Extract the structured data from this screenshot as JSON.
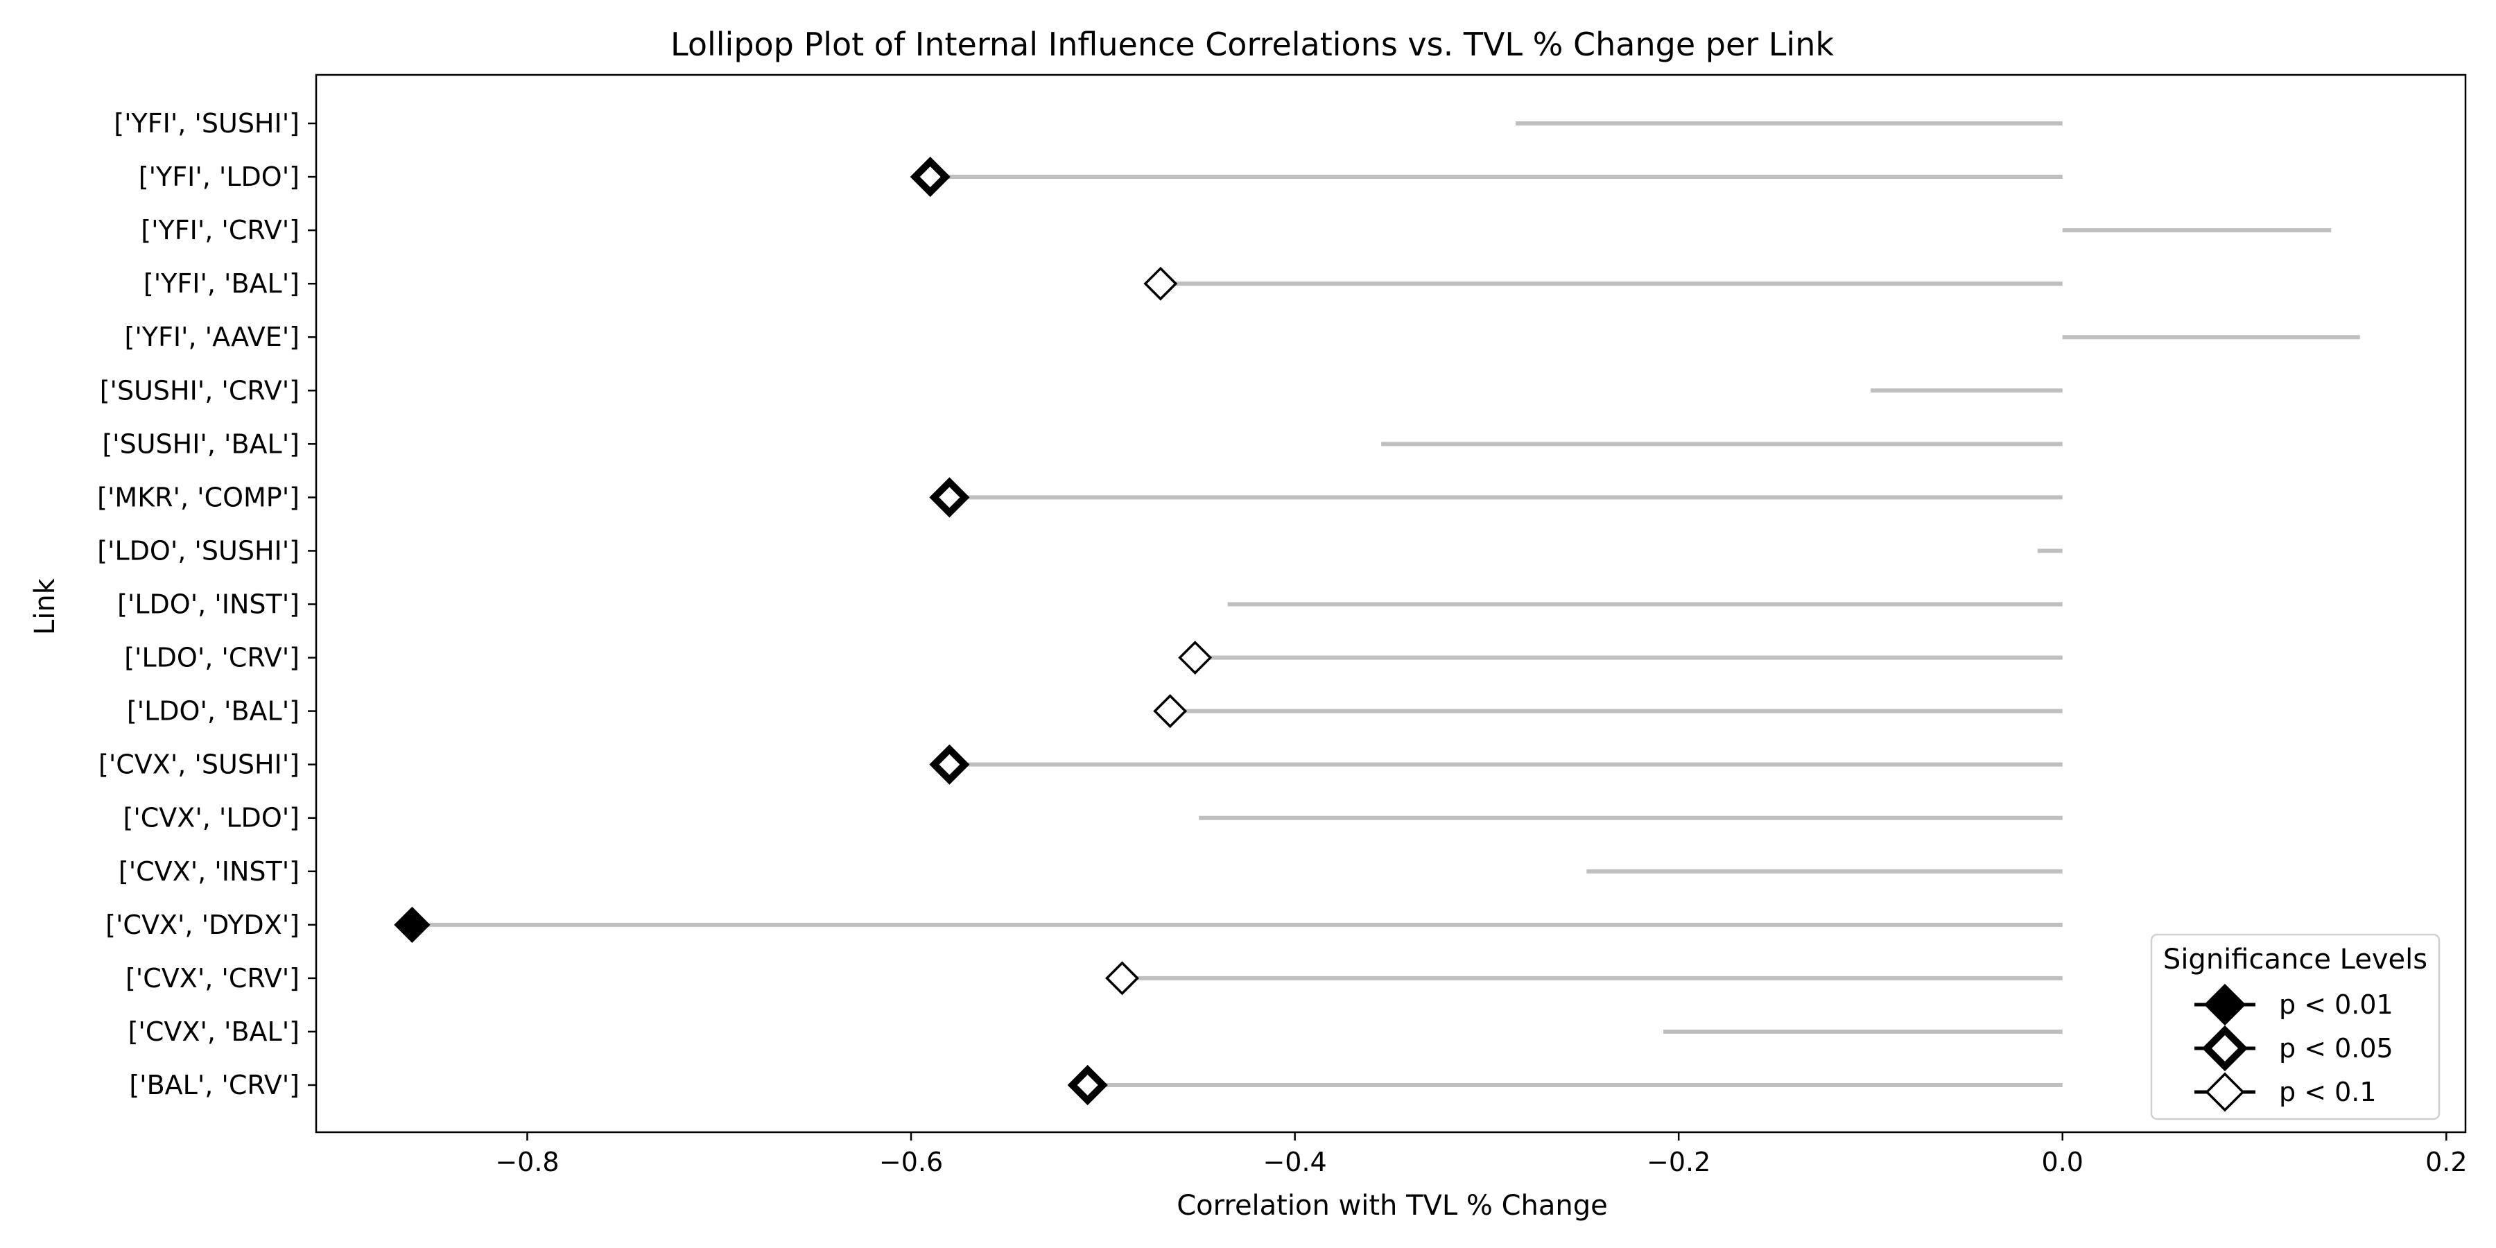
{
  "chart_data": {
    "type": "lollipop",
    "orientation": "horizontal",
    "title": "Lollipop Plot of Internal Influence Correlations vs. TVL % Change per Link",
    "xlabel": "Correlation with TVL % Change",
    "ylabel": "Link",
    "xlim": [
      -0.91,
      0.21
    ],
    "xticks": [
      -0.8,
      -0.6,
      -0.4,
      -0.2,
      0.0,
      0.2
    ],
    "xtick_labels": [
      "−0.8",
      "−0.6",
      "−0.4",
      "−0.2",
      "0.0",
      "0.2"
    ],
    "grid": false,
    "stem_color": "#bfbfbf",
    "marker_color": "#000000",
    "categories": [
      "['YFI', 'SUSHI']",
      "['YFI', 'LDO']",
      "['YFI', 'CRV']",
      "['YFI', 'BAL']",
      "['YFI', 'AAVE']",
      "['SUSHI', 'CRV']",
      "['SUSHI', 'BAL']",
      "['MKR', 'COMP']",
      "['LDO', 'SUSHI']",
      "['LDO', 'INST']",
      "['LDO', 'CRV']",
      "['LDO', 'BAL']",
      "['CVX', 'SUSHI']",
      "['CVX', 'LDO']",
      "['CVX', 'INST']",
      "['CVX', 'DYDX']",
      "['CVX', 'CRV']",
      "['CVX', 'BAL']",
      "['BAL', 'CRV']"
    ],
    "values": [
      -0.285,
      -0.59,
      0.14,
      -0.47,
      0.155,
      -0.1,
      -0.355,
      -0.58,
      -0.013,
      -0.435,
      -0.452,
      -0.465,
      -0.58,
      -0.45,
      -0.248,
      -0.86,
      -0.49,
      -0.208,
      -0.508
    ],
    "significance": [
      "none",
      "p<0.05",
      "none",
      "p<0.1",
      "none",
      "none",
      "none",
      "p<0.05",
      "none",
      "none",
      "p<0.1",
      "p<0.1",
      "p<0.05",
      "none",
      "none",
      "p<0.01",
      "p<0.1",
      "none",
      "p<0.05"
    ],
    "legend": {
      "title": "Significance Levels",
      "position": "lower right",
      "entries": [
        {
          "key": "p<0.01",
          "label": "p < 0.01",
          "style": "filled"
        },
        {
          "key": "p<0.05",
          "label": "p < 0.05",
          "style": "thick"
        },
        {
          "key": "p<0.1",
          "label": "p < 0.1",
          "style": "open"
        }
      ]
    }
  }
}
